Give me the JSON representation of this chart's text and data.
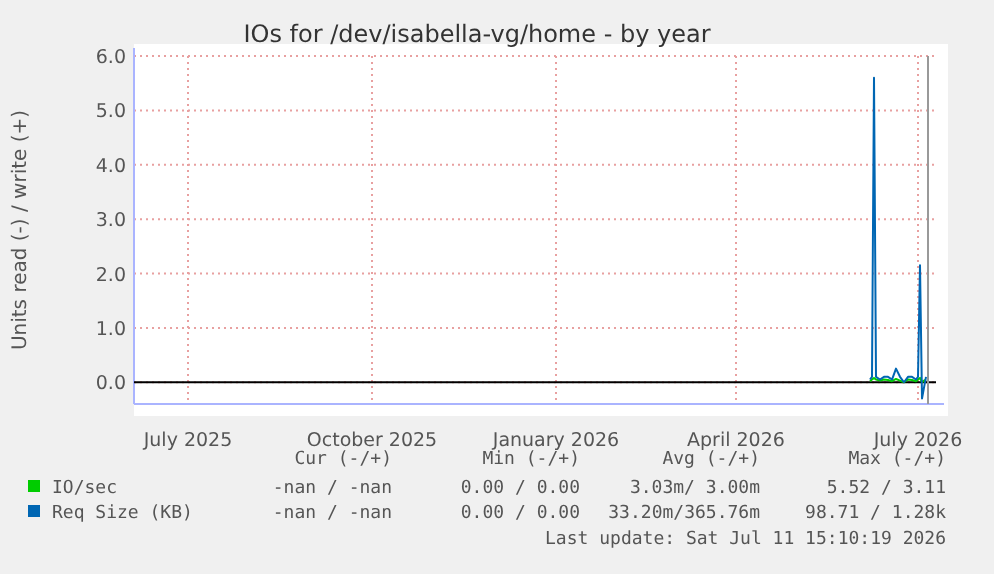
{
  "chart_data": {
    "type": "line",
    "title": "IOs for /dev/isabella-vg/home - by year",
    "ylabel": "Units read (-) / write (+)",
    "xlim": [
      "2025-06-04",
      "2026-07-10"
    ],
    "xticks": [
      {
        "value": "2025-07-01",
        "label": "July 2025"
      },
      {
        "value": "2025-10-01",
        "label": "October 2025"
      },
      {
        "value": "2026-01-01",
        "label": "January 2026"
      },
      {
        "value": "2026-04-01",
        "label": "April 2026"
      },
      {
        "value": "2026-07-01",
        "label": "July 2026"
      }
    ],
    "ylim": [
      -0.4,
      6.0
    ],
    "yticks": [
      {
        "value": 0,
        "label": "0.0"
      },
      {
        "value": 1,
        "label": "1.0"
      },
      {
        "value": 2,
        "label": "2.0"
      },
      {
        "value": 3,
        "label": "3.0"
      },
      {
        "value": 4,
        "label": "4.0"
      },
      {
        "value": 5,
        "label": "5.0"
      },
      {
        "value": 6,
        "label": "6.0"
      }
    ],
    "grid": true,
    "legend": "bottom left",
    "ref_lines": [
      {
        "axis": "y",
        "value": 0,
        "color": "#000000"
      },
      {
        "axis": "x",
        "value": "2026-07-06",
        "color": "#999999"
      }
    ],
    "x": [
      "2026-06-07",
      "2026-06-08",
      "2026-06-09",
      "2026-06-10",
      "2026-06-12",
      "2026-06-14",
      "2026-06-16",
      "2026-06-18",
      "2026-06-20",
      "2026-06-22",
      "2026-06-24",
      "2026-06-26",
      "2026-06-28",
      "2026-06-30",
      "2026-07-01",
      "2026-07-02",
      "2026-07-03",
      "2026-07-04",
      "2026-07-05"
    ],
    "series": [
      {
        "name": "IO/sec",
        "color": "#00cc00",
        "values": [
          0.02,
          0.05,
          0.08,
          0.05,
          0.03,
          0.05,
          0.04,
          0.02,
          0.06,
          0.03,
          0.0,
          0.05,
          0.04,
          0.02,
          0.05,
          0.08,
          0.0,
          0.03,
          0.05
        ]
      },
      {
        "name": "Req Size (KB)",
        "color": "#0066b3",
        "values": [
          0.05,
          0.1,
          5.6,
          0.1,
          0.05,
          0.1,
          0.1,
          0.05,
          0.25,
          0.1,
          0.0,
          0.1,
          0.1,
          0.05,
          0.1,
          2.15,
          -0.3,
          -0.1,
          0.1
        ]
      }
    ],
    "annotations": [
      "Cur (-/+)",
      "Min (-/+)",
      "Avg (-/+)",
      "Max (-/+)",
      "-nan / -nan",
      "0.00 / 0.00",
      "3.03m/ 3.00m",
      "5.52 / 3.11",
      "-nan / -nan",
      "0.00 / 0.00",
      "33.20m/365.76m",
      "98.71 / 1.28k",
      "Last update: Sat Jul 11 15:10:19 2026"
    ]
  }
}
